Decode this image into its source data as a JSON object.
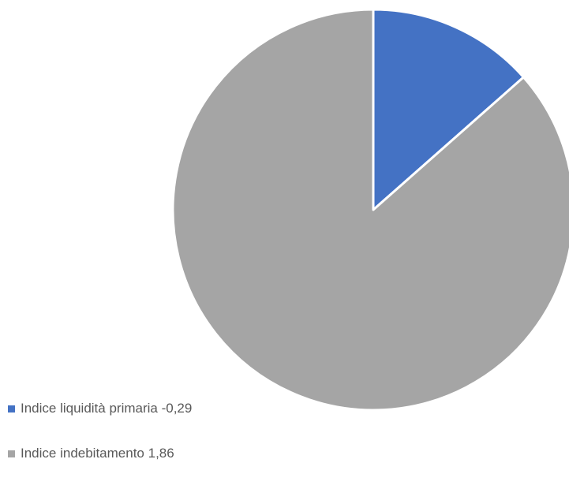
{
  "chart_data": {
    "type": "pie",
    "title": "",
    "slices": [
      {
        "label": "Indice liquidità primaria  -0,29",
        "value": 0.29,
        "color": "#4472C4"
      },
      {
        "label": "Indice indebitamento 1,86",
        "value": 1.86,
        "color": "#A5A5A5"
      }
    ],
    "start_angle_deg": 0,
    "direction": "clockwise",
    "legend_position": "bottom-left",
    "slice_border_color": "#ffffff"
  }
}
